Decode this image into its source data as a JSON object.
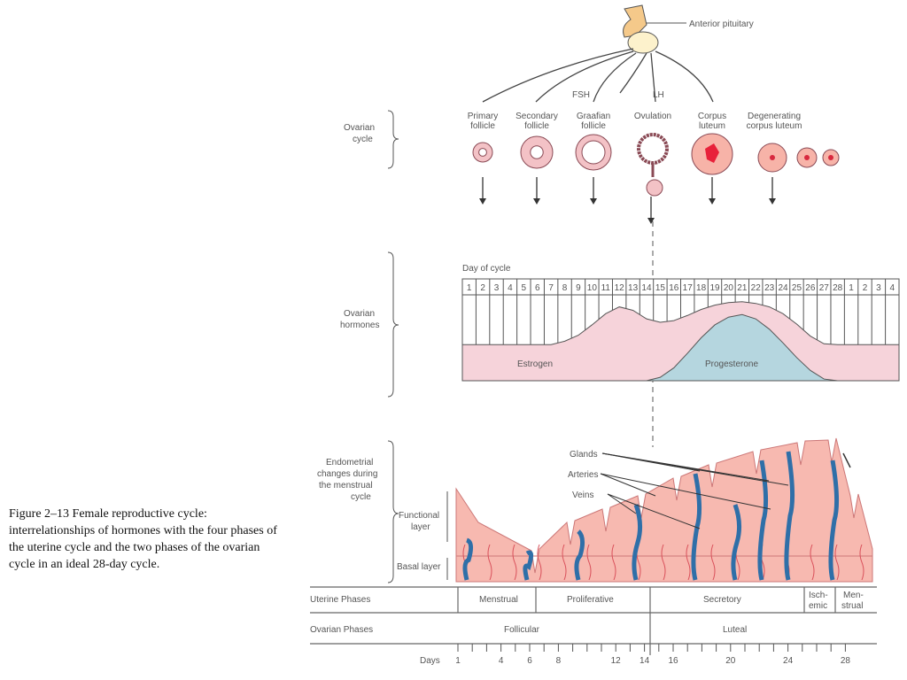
{
  "caption": "Figure 2–13   Female reproductive cycle: interrelationships of hormones with the four phases of the uterine cycle and the two phases of the ovarian cycle in an ideal 28-day cycle.",
  "pituitary": {
    "label": "Anterior pituitary",
    "fsh": "FSH",
    "lh": "LH"
  },
  "ovarian_cycle": {
    "label1": "Ovarian",
    "label2": "cycle",
    "stages": [
      [
        "Primary",
        "follicle"
      ],
      [
        "Secondary",
        "follicle"
      ],
      [
        "Graafian",
        "follicle"
      ],
      [
        "Ovulation",
        ""
      ],
      [
        "Corpus",
        "luteum"
      ],
      [
        "Degenerating",
        "corpus luteum"
      ]
    ]
  },
  "hormones": {
    "label1": "Ovarian",
    "label2": "hormones",
    "day_title": "Day of cycle",
    "days": [
      "1",
      "2",
      "3",
      "4",
      "5",
      "6",
      "7",
      "8",
      "9",
      "10",
      "11",
      "12",
      "13",
      "14",
      "15",
      "16",
      "17",
      "18",
      "19",
      "20",
      "21",
      "22",
      "23",
      "24",
      "25",
      "26",
      "27",
      "28",
      "1",
      "2",
      "3",
      "4"
    ],
    "estrogen_label": "Estrogen",
    "progesterone_label": "Progesterone"
  },
  "chart_data": {
    "type": "area",
    "x_label": "Day of cycle",
    "x": [
      1,
      3,
      5,
      7,
      8,
      9,
      10,
      11,
      12,
      13,
      14,
      15,
      16,
      17,
      18,
      19,
      20,
      21,
      22,
      23,
      24,
      25,
      26,
      27,
      28,
      29,
      30,
      31,
      32
    ],
    "series": [
      {
        "name": "Estrogen",
        "values": [
          0.42,
          0.42,
          0.42,
          0.42,
          0.46,
          0.53,
          0.65,
          0.78,
          0.86,
          0.82,
          0.72,
          0.68,
          0.7,
          0.76,
          0.83,
          0.88,
          0.91,
          0.92,
          0.9,
          0.86,
          0.78,
          0.66,
          0.52,
          0.43,
          0.42,
          0.42,
          0.42,
          0.42,
          0.42
        ]
      },
      {
        "name": "Progesterone",
        "values": [
          0,
          0,
          0,
          0,
          0,
          0,
          0,
          0,
          0,
          0,
          0,
          0.04,
          0.15,
          0.32,
          0.5,
          0.65,
          0.74,
          0.77,
          0.72,
          0.6,
          0.44,
          0.27,
          0.12,
          0.02,
          0,
          0,
          0,
          0,
          0
        ]
      }
    ],
    "ylim": [
      0,
      1
    ]
  },
  "endometrium": {
    "label": [
      "Endometrial",
      "changes during",
      "the menstrual",
      "cycle"
    ],
    "functional": [
      "Functional",
      "layer"
    ],
    "basal": "Basal layer",
    "glands": "Glands",
    "arteries": "Arteries",
    "veins": "Veins"
  },
  "uterine_phases": {
    "label": "Uterine Phases",
    "phases": [
      [
        "Menstrual",
        ""
      ],
      [
        "Proliferative",
        ""
      ],
      [
        "Secretory",
        ""
      ],
      [
        "Isch-",
        "emic"
      ],
      [
        "Men-",
        "strual"
      ]
    ]
  },
  "ovarian_phases": {
    "label": "Ovarian Phases",
    "phases": [
      "Follicular",
      "Luteal"
    ]
  },
  "days_axis": {
    "label": "Days",
    "ticks": [
      "1",
      "4",
      "6",
      "8",
      "12",
      "14",
      "16",
      "20",
      "24",
      "28"
    ]
  },
  "colors": {
    "pink": "#f6d3da",
    "blue": "#b5d6df",
    "tissue": "#f7b9b0",
    "vessel_blue": "#2f6fa8",
    "vessel_red": "#d9505a"
  }
}
